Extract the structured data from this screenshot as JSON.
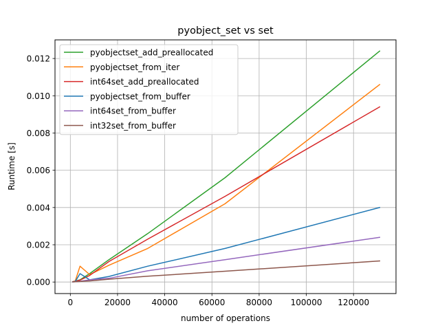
{
  "chart_data": {
    "type": "line",
    "title": "pyobject_set vs set",
    "xlabel": "number of operations",
    "ylabel": "Runtime [s]",
    "xlim": [
      -6500,
      138000
    ],
    "ylim": [
      -0.00062,
      0.013
    ],
    "xticks": [
      0,
      20000,
      40000,
      60000,
      80000,
      100000,
      120000
    ],
    "xtick_labels": [
      "0",
      "20000",
      "40000",
      "60000",
      "80000",
      "100000",
      "120000"
    ],
    "yticks": [
      0,
      0.002,
      0.004,
      0.006,
      0.008,
      0.01,
      0.012
    ],
    "ytick_labels": [
      "0.000",
      "0.002",
      "0.004",
      "0.006",
      "0.008",
      "0.010",
      "0.012"
    ],
    "grid": true,
    "legend_position": "upper-left",
    "series": [
      {
        "name": "pyobjectset_add_preallocated",
        "color": "#2ca02c",
        "x": [
          1024,
          2048,
          4096,
          8192,
          16384,
          32768,
          65536,
          131072
        ],
        "y": [
          2e-05,
          5e-05,
          0.00012,
          0.00045,
          0.0012,
          0.0026,
          0.0056,
          0.0124
        ]
      },
      {
        "name": "pyobjectset_from_iter",
        "color": "#ff7f0e",
        "x": [
          1024,
          2048,
          4096,
          8192,
          16384,
          32768,
          65536,
          131072
        ],
        "y": [
          2e-05,
          4e-05,
          0.00085,
          0.0004,
          0.0009,
          0.0018,
          0.0042,
          0.0106
        ]
      },
      {
        "name": "int64set_add_preallocated",
        "color": "#d62728",
        "x": [
          1024,
          2048,
          4096,
          8192,
          16384,
          32768,
          65536,
          131072
        ],
        "y": [
          2e-05,
          4e-05,
          0.0001,
          0.00035,
          0.0011,
          0.0023,
          0.0046,
          0.0094
        ]
      },
      {
        "name": "pyobjectset_from_buffer",
        "color": "#1f77b4",
        "x": [
          1024,
          2048,
          4096,
          8192,
          16384,
          32768,
          65536,
          131072
        ],
        "y": [
          1e-05,
          2e-05,
          0.00045,
          0.00012,
          0.0003,
          0.00085,
          0.0018,
          0.004
        ]
      },
      {
        "name": "int64set_from_buffer",
        "color": "#9467bd",
        "x": [
          1024,
          2048,
          4096,
          8192,
          16384,
          32768,
          65536,
          131072
        ],
        "y": [
          1e-05,
          2e-05,
          4e-05,
          0.00012,
          0.0002,
          0.0006,
          0.0012,
          0.0024
        ]
      },
      {
        "name": "int32set_from_buffer",
        "color": "#8c564b",
        "x": [
          1024,
          2048,
          4096,
          8192,
          16384,
          32768,
          65536,
          131072
        ],
        "y": [
          1e-05,
          2e-05,
          3e-05,
          6e-05,
          0.00015,
          0.00031,
          0.00058,
          0.00113
        ]
      }
    ]
  }
}
